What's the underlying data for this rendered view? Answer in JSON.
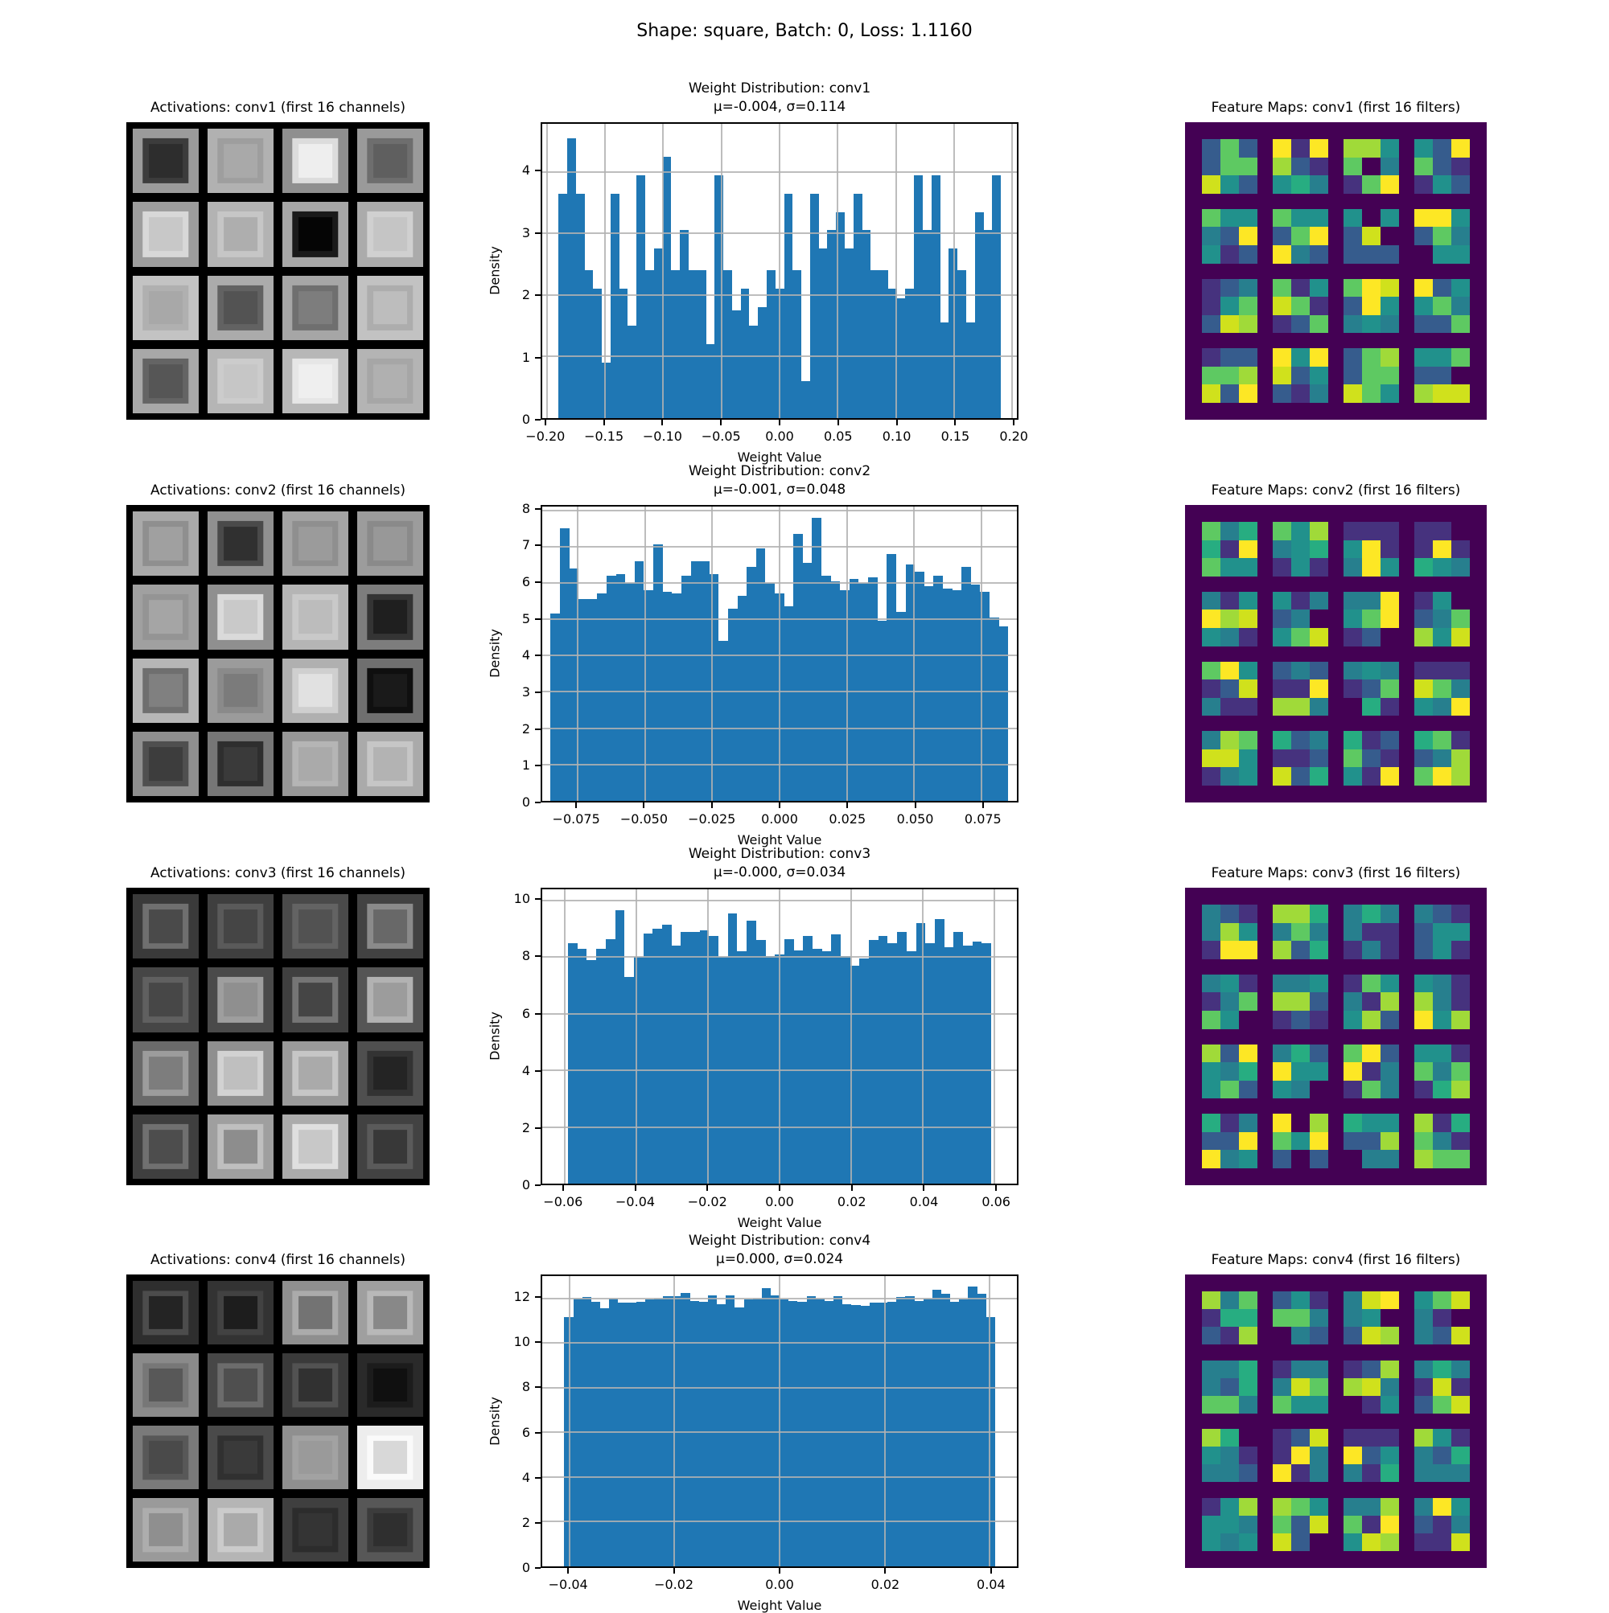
{
  "figure_title": "Shape: square, Batch: 0, Loss: 1.1160",
  "styles": {
    "bar_color": "#1f77b4",
    "grid_color": "#b4b4b4",
    "feature_map_bg": "#440154",
    "viridis_palette": [
      "#440154",
      "#46327e",
      "#365c8d",
      "#277f8e",
      "#21918c",
      "#27ad81",
      "#5ec962",
      "#a0da39",
      "#d0e11c",
      "#fde725"
    ]
  },
  "layers": [
    {
      "name": "conv1",
      "titles": {
        "activations": "Activations: conv1 (first 16 channels)",
        "histogram": "Weight Distribution: conv1",
        "histogram_stats": "μ=-0.004, σ=0.114",
        "feature_maps": "Feature Maps: conv1 (first 16 filters)"
      },
      "activation_cells": [
        [
          "#9b9b9b",
          "#3c3c3c",
          "#2d2d2d"
        ],
        [
          "#b1b1b1",
          "#9e9e9e",
          "#a9a9a9"
        ],
        [
          "#8f8f8f",
          "#dcdcdc",
          "#eeeeee"
        ],
        [
          "#9a9a9a",
          "#6e6e6e",
          "#5f5f5f"
        ],
        [
          "#9d9d9d",
          "#d8d8d8",
          "#c8c8c8"
        ],
        [
          "#b3b3b3",
          "#c6c6c6",
          "#aeaeae"
        ],
        [
          "#a7a7a7",
          "#1a1a1a",
          "#050505"
        ],
        [
          "#ababab",
          "#d0d0d0",
          "#c5c5c5"
        ],
        [
          "#c3c3c3",
          "#b0b0b0",
          "#a8a8a8"
        ],
        [
          "#ababab",
          "#626262",
          "#535353"
        ],
        [
          "#a6a6a6",
          "#6f6f6f",
          "#7d7d7d"
        ],
        [
          "#c2c2c2",
          "#adadad",
          "#bdbdbd"
        ],
        [
          "#a8a8a8",
          "#646464",
          "#565656"
        ],
        [
          "#b5b5b5",
          "#cccccc",
          "#c6c6c6"
        ],
        [
          "#b7b7b7",
          "#e6e6e6",
          "#efefef"
        ],
        [
          "#b4b4b4",
          "#a6a6a6",
          "#b0b0b0"
        ]
      ],
      "feature_maps": [
        [
          "262",
          "266",
          "842"
        ],
        [
          "919",
          "721",
          "453"
        ],
        [
          "774",
          "603",
          "169"
        ],
        [
          "429",
          "621",
          "142"
        ],
        [
          "644",
          "329",
          "412"
        ],
        [
          "644",
          "269",
          "932"
        ],
        [
          "404",
          "280",
          "222"
        ],
        [
          "994",
          "263",
          "044"
        ],
        [
          "123",
          "146",
          "287"
        ],
        [
          "614",
          "861",
          "126"
        ],
        [
          "698",
          "294",
          "343"
        ],
        [
          "924",
          "463",
          "226"
        ],
        [
          "122",
          "667",
          "829"
        ],
        [
          "949",
          "824",
          "213"
        ],
        [
          "267",
          "266",
          "864"
        ],
        [
          "446",
          "220",
          "788"
        ]
      ]
    },
    {
      "name": "conv2",
      "titles": {
        "activations": "Activations: conv2 (first 16 channels)",
        "histogram": "Weight Distribution: conv2",
        "histogram_stats": "μ=-0.001, σ=0.048",
        "feature_maps": "Feature Maps: conv2 (first 16 filters)"
      },
      "activation_cells": [
        [
          "#a9a9a9",
          "#8f8f8f",
          "#a0a0a0"
        ],
        [
          "#909090",
          "#4a4a4a",
          "#303030"
        ],
        [
          "#a4a4a4",
          "#8f8f8f",
          "#9b9b9b"
        ],
        [
          "#9c9c9c",
          "#8a8a8a",
          "#989898"
        ],
        [
          "#a0a0a0",
          "#949494",
          "#a5a5a5"
        ],
        [
          "#8f8f8f",
          "#dadada",
          "#c9c9c9"
        ],
        [
          "#b5b5b5",
          "#c9c9c9",
          "#bcbcbc"
        ],
        [
          "#7d7d7d",
          "#343434",
          "#1f1f1f"
        ],
        [
          "#b6b6b6",
          "#6f6f6f",
          "#808080"
        ],
        [
          "#9b9b9b",
          "#8a8a8a",
          "#7b7b7b"
        ],
        [
          "#b0b0b0",
          "#cfcfcf",
          "#e1e1e1"
        ],
        [
          "#6f6f6f",
          "#0f0f0f",
          "#1a1a1a"
        ],
        [
          "#8f8f8f",
          "#4f4f4f",
          "#3d3d3d"
        ],
        [
          "#767676",
          "#2e2e2e",
          "#3a3a3a"
        ],
        [
          "#979797",
          "#b5b5b5",
          "#aaaaaa"
        ],
        [
          "#aaaaaa",
          "#c6c6c6",
          "#b3b3b3"
        ]
      ],
      "feature_maps": [
        [
          "635",
          "519",
          "644"
        ],
        [
          "647",
          "345",
          "141"
        ],
        [
          "111",
          "491",
          "394"
        ],
        [
          "110",
          "191",
          "543"
        ],
        [
          "314",
          "978",
          "431"
        ],
        [
          "413",
          "230",
          "468"
        ],
        [
          "339",
          "469",
          "120"
        ],
        [
          "140",
          "236",
          "748"
        ],
        [
          "694",
          "128",
          "311"
        ],
        [
          "232",
          "119",
          "773"
        ],
        [
          "343",
          "126",
          "051"
        ],
        [
          "111",
          "863",
          "439"
        ],
        [
          "376",
          "884",
          "134"
        ],
        [
          "523",
          "112",
          "825"
        ],
        [
          "512",
          "621",
          "419"
        ],
        [
          "561",
          "237",
          "697"
        ]
      ]
    },
    {
      "name": "conv3",
      "titles": {
        "activations": "Activations: conv3 (first 16 channels)",
        "histogram": "Weight Distribution: conv3",
        "histogram_stats": "μ=-0.000, σ=0.034",
        "feature_maps": "Feature Maps: conv3 (first 16 filters)"
      },
      "activation_cells": [
        [
          "#3a3a3a",
          "#6f6f6f",
          "#4a4a4a"
        ],
        [
          "#3f3f3f",
          "#5a5a5a",
          "#454545"
        ],
        [
          "#4a4a4a",
          "#636363",
          "#525252"
        ],
        [
          "#424242",
          "#8a8a8a",
          "#686868"
        ],
        [
          "#464646",
          "#606060",
          "#474747"
        ],
        [
          "#4a4a4a",
          "#9e9e9e",
          "#8f8f8f"
        ],
        [
          "#3f3f3f",
          "#757575",
          "#454545"
        ],
        [
          "#555555",
          "#b2b2b2",
          "#9c9c9c"
        ],
        [
          "#6a6a6a",
          "#9c9c9c",
          "#7d7d7d"
        ],
        [
          "#8f8f8f",
          "#d2d2d2",
          "#bfbfbf"
        ],
        [
          "#9a9a9a",
          "#c6c6c6",
          "#aaaaaa"
        ],
        [
          "#4f4f4f",
          "#333333",
          "#242424"
        ],
        [
          "#3f3f3f",
          "#707070",
          "#4d4d4d"
        ],
        [
          "#9f9f9f",
          "#bfbfbf",
          "#8d8d8d"
        ],
        [
          "#ababab",
          "#dfdfdf",
          "#c8c8c8"
        ],
        [
          "#424242",
          "#5a5a5a",
          "#383838"
        ]
      ],
      "feature_maps": [
        [
          "321",
          "374",
          "199"
        ],
        [
          "775",
          "363",
          "725"
        ],
        [
          "353",
          "311",
          "131"
        ],
        [
          "321",
          "244",
          "241"
        ],
        [
          "341",
          "136",
          "640"
        ],
        [
          "334",
          "772",
          "121"
        ],
        [
          "164",
          "317",
          "472"
        ],
        [
          "431",
          "731",
          "947"
        ],
        [
          "729",
          "435",
          "462"
        ],
        [
          "352",
          "944",
          "430"
        ],
        [
          "692",
          "913",
          "163"
        ],
        [
          "441",
          "636",
          "157"
        ],
        [
          "513",
          "229",
          "934"
        ],
        [
          "907",
          "649",
          "202"
        ],
        [
          "544",
          "227",
          "033"
        ],
        [
          "715",
          "631",
          "766"
        ]
      ]
    },
    {
      "name": "conv4",
      "titles": {
        "activations": "Activations: conv4 (first 16 channels)",
        "histogram": "Weight Distribution: conv4",
        "histogram_stats": "μ=0.000, σ=0.024",
        "feature_maps": "Feature Maps: conv4 (first 16 filters)"
      },
      "activation_cells": [
        [
          "#2e2e2e",
          "#4c4c4c",
          "#242424"
        ],
        [
          "#333333",
          "#424242",
          "#1d1d1d"
        ],
        [
          "#8f8f8f",
          "#ababab",
          "#737373"
        ],
        [
          "#9f9f9f",
          "#b8b8b8",
          "#888888"
        ],
        [
          "#8a8a8a",
          "#777777",
          "#585858"
        ],
        [
          "#474747",
          "#6c6c6c",
          "#4f4f4f"
        ],
        [
          "#3a3a3a",
          "#525252",
          "#313131"
        ],
        [
          "#2a2a2a",
          "#1c1c1c",
          "#101010"
        ],
        [
          "#7a7a7a",
          "#585858",
          "#4a4a4a"
        ],
        [
          "#4a4a4a",
          "#303030",
          "#3a3a3a"
        ],
        [
          "#8f8f8f",
          "#a2a2a2",
          "#9a9a9a"
        ],
        [
          "#ededed",
          "#fafafa",
          "#d8d8d8"
        ],
        [
          "#9a9a9a",
          "#adadad",
          "#8f8f8f"
        ],
        [
          "#b5b5b5",
          "#cbcbcb",
          "#aaaaaa"
        ],
        [
          "#3f3f3f",
          "#2c2c2c",
          "#343434"
        ],
        [
          "#575757",
          "#3c3c3c",
          "#2f2f2f"
        ]
      ],
      "feature_maps": [
        [
          "736",
          "155",
          "217"
        ],
        [
          "241",
          "663",
          "032"
        ],
        [
          "389",
          "340",
          "287"
        ],
        [
          "468",
          "310",
          "328"
        ],
        [
          "335",
          "325",
          "663"
        ],
        [
          "133",
          "386",
          "644"
        ],
        [
          "127",
          "783",
          "014"
        ],
        [
          "353",
          "181",
          "268"
        ],
        [
          "750",
          "431",
          "332"
        ],
        [
          "128",
          "193",
          "913"
        ],
        [
          "111",
          "924",
          "315"
        ],
        [
          "741",
          "325",
          "333"
        ],
        [
          "147",
          "443",
          "434"
        ],
        [
          "764",
          "628",
          "820"
        ],
        [
          "337",
          "619",
          "487"
        ],
        [
          "394",
          "213",
          "118"
        ]
      ]
    }
  ],
  "chart_data": [
    {
      "type": "bar",
      "title": "Weight Distribution: conv1",
      "subtitle": "μ=-0.004, σ=0.114",
      "xlabel": "Weight Value",
      "ylabel": "Density",
      "xlim": [
        -0.204,
        0.204
      ],
      "ylim": [
        0,
        4.78
      ],
      "bar_range": [
        -0.19,
        0.19
      ],
      "xticks": [
        -0.2,
        -0.15,
        -0.1,
        -0.05,
        0.0,
        0.05,
        0.1,
        0.15,
        0.2
      ],
      "xtick_labels": [
        "−0.20",
        "−0.15",
        "−0.10",
        "−0.05",
        "0.00",
        "0.05",
        "0.10",
        "0.15",
        "0.20"
      ],
      "yticks": [
        0,
        1,
        2,
        3,
        4
      ],
      "grid": true,
      "values": [
        3.65,
        4.55,
        3.65,
        2.4,
        2.1,
        0.9,
        3.65,
        2.1,
        1.5,
        3.95,
        2.4,
        2.75,
        4.25,
        2.4,
        3.05,
        2.4,
        2.4,
        1.2,
        3.95,
        2.4,
        1.75,
        2.1,
        1.5,
        1.8,
        2.4,
        2.1,
        3.65,
        2.4,
        0.6,
        3.65,
        2.75,
        3.05,
        3.35,
        2.75,
        3.65,
        3.05,
        2.4,
        2.4,
        2.1,
        1.95,
        2.1,
        3.95,
        3.05,
        3.95,
        1.55,
        2.75,
        2.4,
        1.55,
        3.35,
        3.05,
        3.95
      ]
    },
    {
      "type": "bar",
      "title": "Weight Distribution: conv2",
      "subtitle": "μ=-0.001, σ=0.048",
      "xlabel": "Weight Value",
      "ylabel": "Density",
      "xlim": [
        -0.0881,
        0.0881
      ],
      "ylim": [
        0,
        8.1
      ],
      "bar_range": [
        -0.085,
        0.085
      ],
      "xticks": [
        -0.075,
        -0.05,
        -0.025,
        0.0,
        0.025,
        0.05,
        0.075
      ],
      "xtick_labels": [
        "−0.075",
        "−0.050",
        "−0.025",
        "0.000",
        "0.025",
        "0.050",
        "0.075"
      ],
      "yticks": [
        0,
        1,
        2,
        3,
        4,
        5,
        6,
        7,
        8
      ],
      "grid": true,
      "values": [
        5.15,
        7.5,
        6.4,
        5.55,
        5.55,
        5.7,
        6.2,
        6.25,
        6.0,
        6.6,
        5.8,
        7.05,
        5.75,
        5.7,
        6.2,
        6.6,
        6.6,
        6.25,
        4.4,
        5.3,
        5.65,
        6.45,
        6.95,
        6.0,
        5.7,
        5.35,
        7.35,
        6.55,
        7.8,
        6.2,
        6.05,
        5.8,
        6.1,
        6.0,
        6.15,
        4.95,
        6.8,
        5.2,
        6.5,
        6.3,
        5.9,
        6.2,
        5.85,
        5.8,
        6.45,
        5.95,
        5.75,
        5.05,
        4.8
      ]
    },
    {
      "type": "bar",
      "title": "Weight Distribution: conv3",
      "subtitle": "μ=-0.000, σ=0.034",
      "xlabel": "Weight Value",
      "ylabel": "Density",
      "xlim": [
        -0.0662,
        0.0662
      ],
      "ylim": [
        0,
        10.4
      ],
      "bar_range": [
        -0.059,
        0.059
      ],
      "xticks": [
        -0.06,
        -0.04,
        -0.02,
        0.0,
        0.02,
        0.04,
        0.06
      ],
      "xtick_labels": [
        "−0.06",
        "−0.04",
        "−0.02",
        "0.00",
        "0.02",
        "0.04",
        "0.06"
      ],
      "yticks": [
        0,
        2,
        4,
        6,
        8,
        10
      ],
      "grid": true,
      "values": [
        8.5,
        8.3,
        7.9,
        8.3,
        8.65,
        9.65,
        7.3,
        8.0,
        8.85,
        9.0,
        9.15,
        8.4,
        8.9,
        8.9,
        8.95,
        8.75,
        8.0,
        9.55,
        8.2,
        9.3,
        8.6,
        8.05,
        8.1,
        8.65,
        8.25,
        8.75,
        8.3,
        8.2,
        8.8,
        8.05,
        7.7,
        7.95,
        8.6,
        8.75,
        8.5,
        8.9,
        8.2,
        9.2,
        8.5,
        9.35,
        8.35,
        8.9,
        8.4,
        8.55,
        8.5
      ]
    },
    {
      "type": "bar",
      "title": "Weight Distribution: conv4",
      "subtitle": "μ=0.000, σ=0.024",
      "xlabel": "Weight Value",
      "ylabel": "Density",
      "xlim": [
        -0.0452,
        0.0452
      ],
      "ylim": [
        0,
        13.0
      ],
      "bar_range": [
        -0.041,
        0.041
      ],
      "xticks": [
        -0.04,
        -0.02,
        0.0,
        0.02,
        0.04
      ],
      "xtick_labels": [
        "−0.04",
        "−0.02",
        "0.00",
        "0.02",
        "0.04"
      ],
      "yticks": [
        0,
        2,
        4,
        6,
        8,
        10,
        12
      ],
      "grid": true,
      "values": [
        11.15,
        12.0,
        12.05,
        11.85,
        11.55,
        12.0,
        11.8,
        11.8,
        11.85,
        11.95,
        12.0,
        12.1,
        12.1,
        12.25,
        11.9,
        11.85,
        12.15,
        11.75,
        12.15,
        11.6,
        11.95,
        12.0,
        12.45,
        12.15,
        11.95,
        11.9,
        11.85,
        12.1,
        12.0,
        11.9,
        12.1,
        11.75,
        11.7,
        11.65,
        11.8,
        11.8,
        11.85,
        12.05,
        12.1,
        11.9,
        12.0,
        12.4,
        12.2,
        11.85,
        11.95,
        12.55,
        12.2,
        11.15
      ]
    }
  ]
}
